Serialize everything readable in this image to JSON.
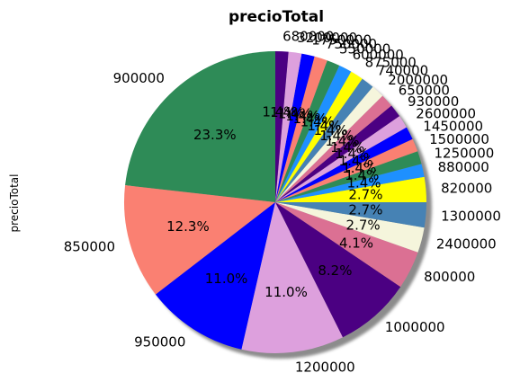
{
  "chart_data": {
    "type": "pie",
    "title": "precioTotal",
    "ylabel": "precioTotal",
    "shadow": true,
    "start_angle": 90,
    "direction": "counterclockwise",
    "slices": [
      {
        "label": "900000",
        "percent": 23.3,
        "pct_label": "23.3%",
        "color": "#2e8b57"
      },
      {
        "label": "850000",
        "percent": 12.3,
        "pct_label": "12.3%",
        "color": "#fa8072"
      },
      {
        "label": "950000",
        "percent": 11.0,
        "pct_label": "11.0%",
        "color": "#0000ff"
      },
      {
        "label": "1200000",
        "percent": 11.0,
        "pct_label": "11.0%",
        "color": "#dda0dd"
      },
      {
        "label": "1000000",
        "percent": 8.2,
        "pct_label": "8.2%",
        "color": "#4b0082"
      },
      {
        "label": "800000",
        "percent": 4.1,
        "pct_label": "4.1%",
        "color": "#db7093"
      },
      {
        "label": "2400000",
        "percent": 2.7,
        "pct_label": "2.7%",
        "color": "#f5f5dc"
      },
      {
        "label": "1300000",
        "percent": 2.7,
        "pct_label": "2.7%",
        "color": "#4682b4"
      },
      {
        "label": "820000",
        "percent": 2.7,
        "pct_label": "2.7%",
        "color": "#ffff00"
      },
      {
        "label": "880000",
        "percent": 1.4,
        "pct_label": "1.4%",
        "color": "#1e90ff"
      },
      {
        "label": "1250000",
        "percent": 1.4,
        "pct_label": "1.4%",
        "color": "#2e8b57"
      },
      {
        "label": "1500000",
        "percent": 1.4,
        "pct_label": "1.4%",
        "color": "#fa8072"
      },
      {
        "label": "1450000",
        "percent": 1.4,
        "pct_label": "1.4%",
        "color": "#0000ff"
      },
      {
        "label": "2600000",
        "percent": 1.4,
        "pct_label": "1.4%",
        "color": "#dda0dd"
      },
      {
        "label": "930000",
        "percent": 1.4,
        "pct_label": "1.4%",
        "color": "#4b0082"
      },
      {
        "label": "650000",
        "percent": 1.4,
        "pct_label": "1.4%",
        "color": "#db7093"
      },
      {
        "label": "2000000",
        "percent": 1.4,
        "pct_label": "1.4%",
        "color": "#f5f5dc"
      },
      {
        "label": "740000",
        "percent": 1.4,
        "pct_label": "1.4%",
        "color": "#4682b4"
      },
      {
        "label": "875000",
        "percent": 1.4,
        "pct_label": "1.4%",
        "color": "#ffff00"
      },
      {
        "label": "600000",
        "percent": 1.4,
        "pct_label": "1.4%",
        "color": "#1e90ff"
      },
      {
        "label": "550000",
        "percent": 1.4,
        "pct_label": "1.4%",
        "color": "#2e8b57"
      },
      {
        "label": "750000",
        "percent": 1.4,
        "pct_label": "1.4%",
        "color": "#fa8072"
      },
      {
        "label": "1750000",
        "percent": 1.4,
        "pct_label": "1.4%",
        "color": "#0000ff"
      },
      {
        "label": "3200000",
        "percent": 1.4,
        "pct_label": "1.4%",
        "color": "#dda0dd"
      },
      {
        "label": "680000",
        "percent": 1.4,
        "pct_label": "1.4%",
        "color": "#4b0082"
      }
    ]
  }
}
